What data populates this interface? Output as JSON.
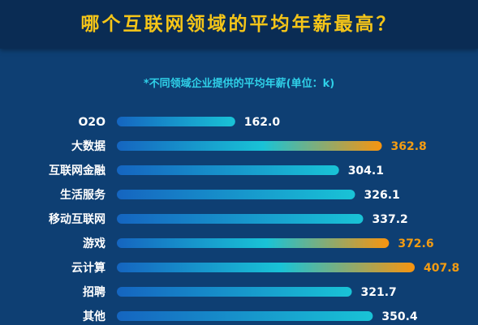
{
  "header": {
    "title": "哪个互联网领域的平均年薪最高？",
    "subtitle": "*不同领域企业提供的平均年薪(单位：k)"
  },
  "colors": {
    "background": "#0e3f73",
    "header_bg": "#0a2c54",
    "title": "#f5c518",
    "subtitle": "#2fd0e8",
    "bar_start": "#1565c0",
    "bar_mid": "#19c3d6",
    "bar_high_end": "#f7940f",
    "value_normal": "#ffffff",
    "value_high": "#f39c12"
  },
  "chart_data": {
    "type": "bar",
    "orientation": "horizontal",
    "title": "哪个互联网领域的平均年薪最高？",
    "subtitle": "*不同领域企业提供的平均年薪(单位：k)",
    "categories": [
      "O2O",
      "大数据",
      "互联网金融",
      "生活服务",
      "移动互联网",
      "游戏",
      "云计算",
      "招聘",
      "其他"
    ],
    "values": [
      162.0,
      362.8,
      304.1,
      326.1,
      337.2,
      372.6,
      407.8,
      321.7,
      350.4
    ],
    "value_labels": [
      "162.0",
      "362.8",
      "304.1",
      "326.1",
      "337.2",
      "372.6",
      "407.8",
      "321.7",
      "350.4"
    ],
    "highlighted": [
      "大数据",
      "游戏",
      "云计算"
    ],
    "grid": false,
    "legend": "none"
  }
}
